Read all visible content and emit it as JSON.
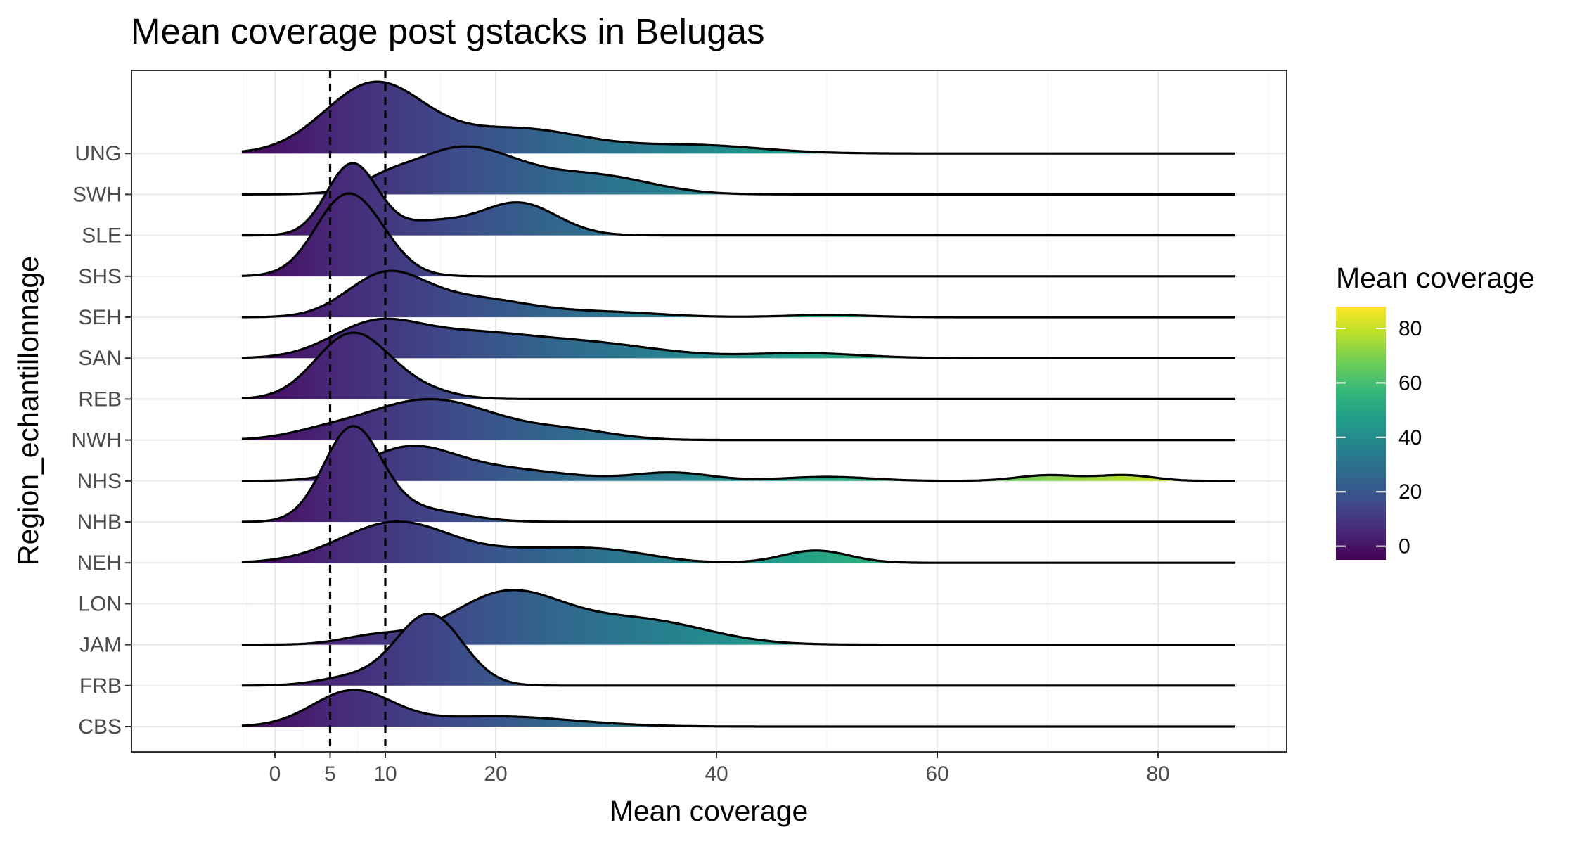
{
  "chart_data": {
    "type": "ridgeline",
    "title": "Mean coverage post gstacks in Belugas",
    "xlabel": "Mean coverage",
    "ylabel": "Region_echantillonnage",
    "xlim": [
      -8.5,
      92
    ],
    "x_ticks": [
      0,
      5,
      10,
      20,
      40,
      60,
      80
    ],
    "x_tick_labels": [
      "0",
      "5",
      "10",
      "20",
      "40",
      "60",
      "80"
    ],
    "grid": true,
    "reference_lines": [
      5,
      10
    ],
    "density_range": [
      -3,
      87
    ],
    "categories": [
      "CBS",
      "FRB",
      "JAM",
      "LON",
      "NEH",
      "NHB",
      "NHS",
      "NWH",
      "REB",
      "SAN",
      "SEH",
      "SHS",
      "SLE",
      "SWH",
      "UNG"
    ],
    "series": [
      {
        "name": "CBS",
        "components": [
          [
            7,
            3.6,
            0.85
          ],
          [
            20,
            7,
            0.25
          ]
        ]
      },
      {
        "name": "FRB",
        "components": [
          [
            14,
            3,
            1.75
          ],
          [
            7,
            3,
            0.2
          ]
        ]
      },
      {
        "name": "JAM",
        "components": [
          [
            21,
            5,
            1.25
          ],
          [
            33,
            6,
            0.6
          ],
          [
            9,
            3,
            0.2
          ]
        ]
      },
      {
        "name": "LON",
        "components": [],
        "comment": "no density drawn"
      },
      {
        "name": "NEH",
        "components": [
          [
            11,
            5,
            1.0
          ],
          [
            24,
            5,
            0.3
          ],
          [
            31,
            4,
            0.2
          ],
          [
            49,
            3,
            0.3
          ]
        ]
      },
      {
        "name": "NHB",
        "components": [
          [
            7,
            2.6,
            2.25
          ],
          [
            13,
            4,
            0.3
          ]
        ]
      },
      {
        "name": "NHS",
        "components": [
          [
            12,
            4,
            0.73
          ],
          [
            20,
            6,
            0.3
          ],
          [
            36,
            3.5,
            0.2
          ],
          [
            50,
            4,
            0.1
          ],
          [
            70,
            2.8,
            0.14
          ],
          [
            77,
            2.6,
            0.14
          ]
        ]
      },
      {
        "name": "NWH",
        "components": [
          [
            14,
            6,
            1.0
          ],
          [
            27,
            4,
            0.2
          ],
          [
            4,
            3,
            0.1
          ]
        ]
      },
      {
        "name": "REB",
        "components": [
          [
            7,
            3.3,
            1.6
          ],
          [
            13,
            3,
            0.2
          ]
        ]
      },
      {
        "name": "SAN",
        "components": [
          [
            9,
            4,
            0.8
          ],
          [
            17,
            5,
            0.45
          ],
          [
            27,
            7,
            0.4
          ],
          [
            48,
            5,
            0.12
          ]
        ]
      },
      {
        "name": "SEH",
        "components": [
          [
            10,
            3.5,
            1.0
          ],
          [
            18,
            5,
            0.45
          ],
          [
            30,
            5,
            0.12
          ],
          [
            50,
            4,
            0.05
          ]
        ]
      },
      {
        "name": "SHS",
        "components": [
          [
            7,
            3,
            1.9
          ],
          [
            5,
            2,
            0.2
          ]
        ]
      },
      {
        "name": "SLE",
        "components": [
          [
            7,
            2.3,
            1.75
          ],
          [
            22,
            3.5,
            0.8
          ],
          [
            14,
            3,
            0.3
          ]
        ]
      },
      {
        "name": "SWH",
        "components": [
          [
            17,
            5,
            1.15
          ],
          [
            29,
            5,
            0.45
          ],
          [
            10,
            2,
            0.15
          ]
        ]
      },
      {
        "name": "UNG",
        "components": [
          [
            9,
            4.5,
            1.7
          ],
          [
            22,
            6,
            0.6
          ],
          [
            38,
            6,
            0.2
          ]
        ]
      }
    ]
  },
  "legend": {
    "title": "Mean coverage",
    "labels": [
      "0",
      "20",
      "40",
      "60",
      "80"
    ],
    "values": [
      0,
      20,
      40,
      60,
      80
    ],
    "range": [
      -5,
      88
    ],
    "colors": [
      "#440154",
      "#482878",
      "#3e4989",
      "#31688e",
      "#26828e",
      "#1f9e89",
      "#35b779",
      "#6ece58",
      "#b5de2b",
      "#fde725"
    ]
  },
  "colors": {
    "panel_background": "#ffffff",
    "grid_major": "#ebebeb",
    "grid_minor": "#f5f5f5",
    "panel_border": "#333333",
    "density_line": "#000000",
    "reference_line": "#000000"
  }
}
